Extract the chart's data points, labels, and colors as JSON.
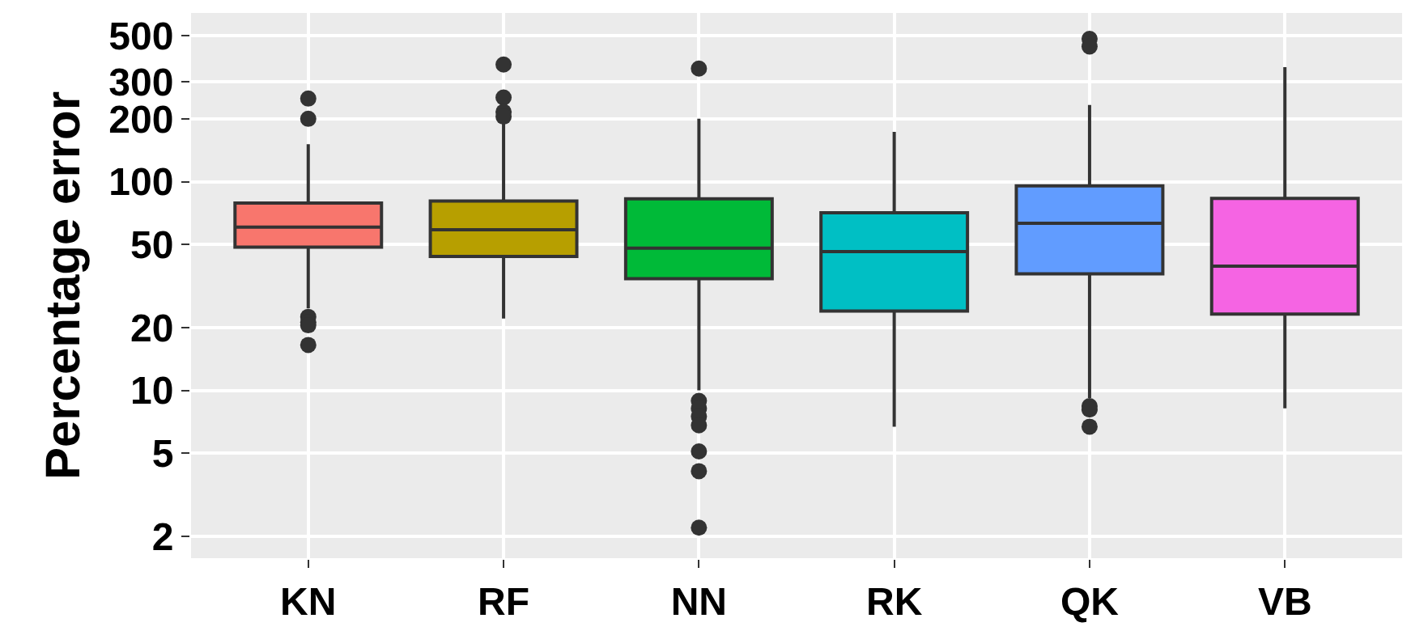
{
  "chart_data": {
    "type": "box",
    "ylabel": "Percentage error",
    "categories": [
      "KN",
      "RF",
      "NN",
      "RK",
      "QK",
      "VB"
    ],
    "colors": [
      "#f8766d",
      "#b79f00",
      "#00ba38",
      "#00bfc4",
      "#619cff",
      "#f564e3"
    ],
    "boxes": [
      {
        "low": 24.7,
        "q1": 48.5,
        "median": 60.5,
        "q3": 79,
        "high": 151,
        "outliers": [
          250,
          200,
          22.5,
          21.2,
          20.5,
          16.5
        ]
      },
      {
        "low": 22.1,
        "q1": 43.8,
        "median": 58.8,
        "q3": 80.7,
        "high": 190,
        "outliers": [
          364,
          253,
          216,
          205
        ]
      },
      {
        "low": 10,
        "q1": 34.3,
        "median": 48,
        "q3": 82.7,
        "high": 200,
        "outliers": [
          348,
          8.9,
          8.2,
          7.5,
          6.8,
          5.1,
          4.1,
          2.2
        ]
      },
      {
        "low": 6.7,
        "q1": 24,
        "median": 46.2,
        "q3": 71,
        "high": 173
      },
      {
        "low": 9.2,
        "q1": 36.2,
        "median": 63.2,
        "q3": 95.5,
        "high": 233,
        "outliers": [
          483,
          444,
          8.4,
          8.1,
          6.7
        ]
      },
      {
        "low": 8.2,
        "q1": 23.2,
        "median": 39.4,
        "q3": 83.2,
        "high": 354
      }
    ],
    "log": true,
    "ylim": [
      1.57,
      643
    ],
    "yticks": [
      2,
      5,
      10,
      20,
      50,
      100,
      200,
      300,
      500
    ],
    "grid": true
  }
}
